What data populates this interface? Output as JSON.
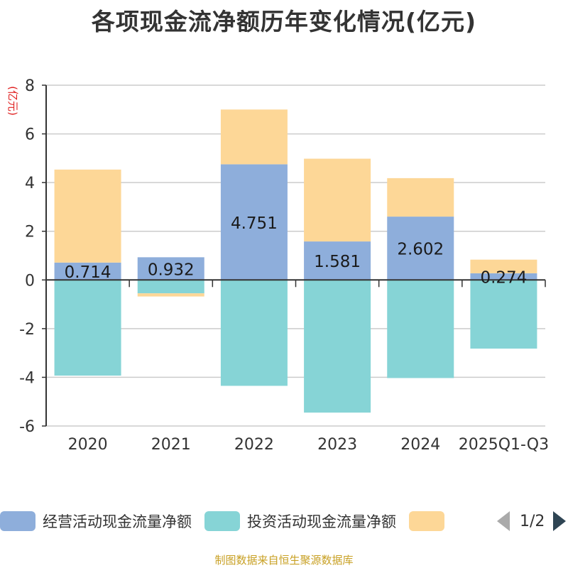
{
  "chart_data": {
    "type": "bar",
    "stacked": true,
    "title": "各项现金流净额历年变化情况(亿元)",
    "ylabel": "(亿元)",
    "xlabel": "",
    "ylim": [
      -6,
      8
    ],
    "yticks": [
      8,
      6,
      4,
      2,
      0,
      -2,
      -4,
      -6
    ],
    "grid": true,
    "categories": [
      "2020",
      "2021",
      "2022",
      "2023",
      "2024",
      "2025Q1-Q3"
    ],
    "series": [
      {
        "name": "经营活动现金流量净额",
        "color": "#8eaedb",
        "values": [
          0.714,
          0.932,
          4.751,
          1.581,
          2.602,
          0.274
        ],
        "labels": [
          "0.714",
          "0.932",
          "4.751",
          "1.581",
          "2.602",
          "0.274"
        ]
      },
      {
        "name": "投资活动现金流量净额",
        "color": "#86d4d6",
        "values": [
          -3.93,
          -0.55,
          -4.35,
          -5.45,
          -4.03,
          -2.82
        ]
      },
      {
        "name": "",
        "color": "#fdd797",
        "values": [
          3.82,
          -0.13,
          2.25,
          3.4,
          1.58,
          0.56
        ]
      }
    ]
  },
  "legend": {
    "items": [
      {
        "label": "经营活动现金流量净额",
        "color": "#8eaedb"
      },
      {
        "label": "投资活动现金流量净额",
        "color": "#86d4d6"
      },
      {
        "label": "",
        "color": "#fdd797"
      }
    ],
    "pager": "1/2"
  },
  "source": "制图数据来自恒生聚源数据库"
}
